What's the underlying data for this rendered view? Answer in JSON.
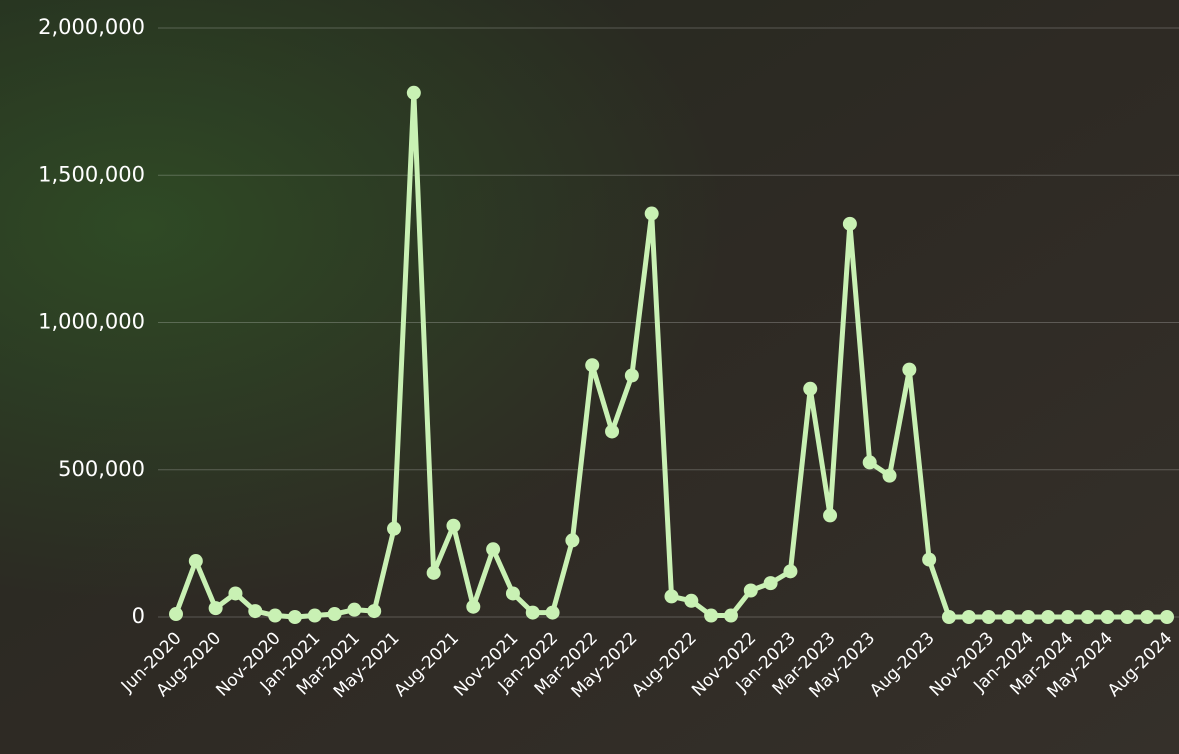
{
  "chart_data": {
    "type": "line",
    "categories": [
      "Jun-2020",
      null,
      "Aug-2020",
      null,
      null,
      "Nov-2020",
      null,
      "Jan-2021",
      null,
      "Mar-2021",
      null,
      "May-2021",
      null,
      null,
      "Aug-2021",
      null,
      null,
      "Nov-2021",
      null,
      "Jan-2022",
      null,
      "Mar-2022",
      null,
      "May-2022",
      null,
      null,
      "Aug-2022",
      null,
      null,
      "Nov-2022",
      null,
      "Jan-2023",
      null,
      "Mar-2023",
      null,
      "May-2023",
      null,
      null,
      "Aug-2023",
      null,
      null,
      "Nov-2023",
      null,
      "Jan-2024",
      null,
      "Mar-2024",
      null,
      "May-2024",
      null,
      null,
      "Aug-2024"
    ],
    "values": [
      10000,
      190000,
      30000,
      80000,
      20000,
      5000,
      0,
      5000,
      10000,
      25000,
      20000,
      300000,
      1780000,
      150000,
      310000,
      35000,
      230000,
      80000,
      15000,
      15000,
      260000,
      855000,
      630000,
      820000,
      1370000,
      70000,
      55000,
      5000,
      5000,
      90000,
      115000,
      155000,
      775000,
      345000,
      1335000,
      525000,
      480000,
      840000,
      195000,
      0,
      0,
      0,
      0,
      0,
      0,
      0,
      0,
      0,
      0,
      0,
      0
    ],
    "color": "#c9f1b4",
    "ylim": [
      0,
      2000000
    ],
    "yticks": [
      {
        "value": 0,
        "label": "0"
      },
      {
        "value": 500000,
        "label": "500,000"
      },
      {
        "value": 1000000,
        "label": "1,000,000"
      },
      {
        "value": 1500000,
        "label": "1,500,000"
      },
      {
        "value": 2000000,
        "label": "2,000,000"
      }
    ],
    "grid": true
  }
}
